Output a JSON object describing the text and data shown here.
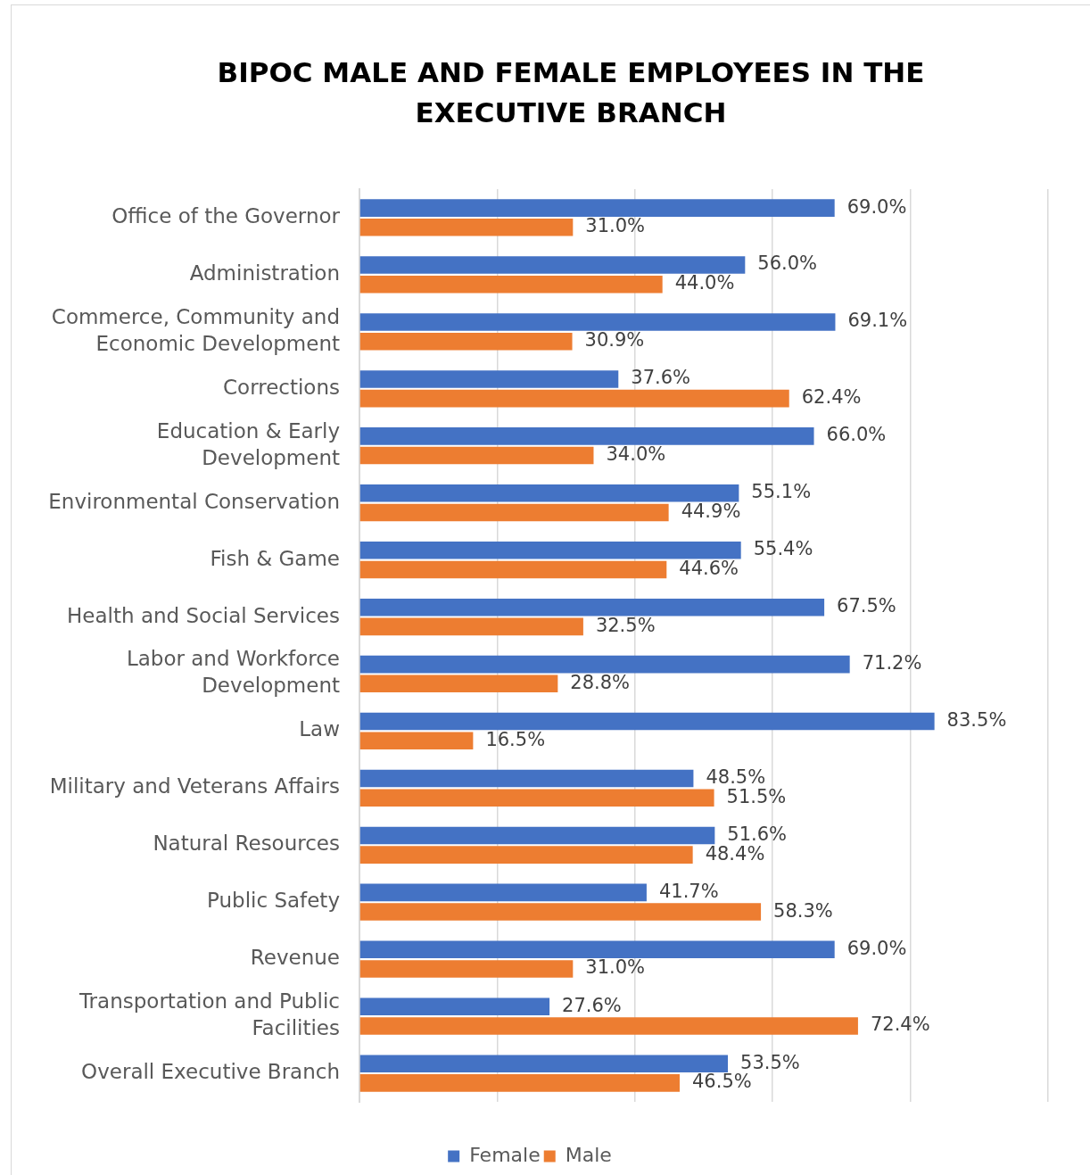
{
  "chart_data": {
    "type": "bar",
    "orientation": "horizontal",
    "title": "BIPOC MALE AND FEMALE EMPLOYEES IN THE EXECUTIVE BRANCH",
    "categories": [
      "Office of the Governor",
      "Administration",
      "Commerce, Community and Economic Development",
      "Corrections",
      "Education & Early Development",
      "Environmental Conservation",
      "Fish & Game",
      "Health and Social Services",
      "Labor and Workforce Development",
      "Law",
      "Military and Veterans Affairs",
      "Natural Resources",
      "Public Safety",
      "Revenue",
      "Transportation and Public Facilities",
      "Overall Executive Branch"
    ],
    "series": [
      {
        "name": "Female",
        "color": "#4472c4",
        "values": [
          69.0,
          56.0,
          69.1,
          37.6,
          66.0,
          55.1,
          55.4,
          67.5,
          71.2,
          83.5,
          48.5,
          51.6,
          41.7,
          69.0,
          27.6,
          53.5
        ],
        "value_labels": [
          "69.0%",
          "56.0%",
          "69.1%",
          "37.6%",
          "66.0%",
          "55.1%",
          "55.4%",
          "67.5%",
          "71.2%",
          "83.5%",
          "48.5%",
          "51.6%",
          "41.7%",
          "69.0%",
          "27.6%",
          "53.5%"
        ]
      },
      {
        "name": "Male",
        "color": "#ed7d31",
        "values": [
          31.0,
          44.0,
          30.9,
          62.4,
          34.0,
          44.9,
          44.6,
          32.5,
          28.8,
          16.5,
          51.5,
          48.4,
          58.3,
          31.0,
          72.4,
          46.5
        ],
        "value_labels": [
          "31.0%",
          "44.0%",
          "30.9%",
          "62.4%",
          "34.0%",
          "44.9%",
          "44.6%",
          "32.5%",
          "28.8%",
          "16.5%",
          "51.5%",
          "48.4%",
          "58.3%",
          "31.0%",
          "72.4%",
          "46.5%"
        ]
      }
    ],
    "xlim": [
      0,
      100
    ],
    "xticks": [
      {
        "value": 0,
        "label": null
      },
      {
        "value": 20,
        "label": null
      },
      {
        "value": 40,
        "label": null
      },
      {
        "value": 60,
        "label": null
      },
      {
        "value": 80,
        "label": null
      },
      {
        "value": 100,
        "label": null
      }
    ],
    "grid": "x",
    "legend": "bottom",
    "tick_labels": "y"
  }
}
